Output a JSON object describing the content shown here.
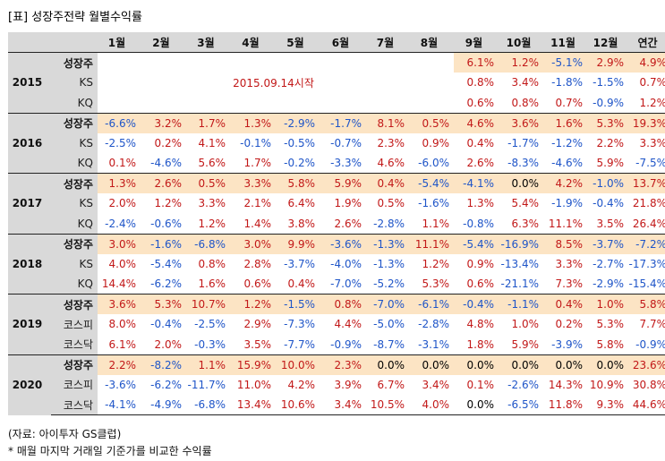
{
  "title": "[표] 성장주전략 월별수익률",
  "header": [
    "1월",
    "2월",
    "3월",
    "4월",
    "5월",
    "6월",
    "7월",
    "8월",
    "9월",
    "10월",
    "11월",
    "12월",
    "연간"
  ],
  "groups": [
    {
      "year": "2015",
      "note": "2015.09.14시작",
      "rows": [
        {
          "label": "성장주",
          "main": true,
          "values": [
            "",
            "",
            "",
            "",
            "",
            "",
            "",
            "",
            "6.1%",
            "1.2%",
            "-5.1%",
            "2.9%",
            "4.9%"
          ]
        },
        {
          "label": "KS",
          "main": false,
          "values": [
            "",
            "",
            "",
            "",
            "",
            "",
            "",
            "",
            "0.8%",
            "3.4%",
            "-1.8%",
            "-1.5%",
            "0.7%"
          ]
        },
        {
          "label": "KQ",
          "main": false,
          "values": [
            "",
            "",
            "",
            "",
            "",
            "",
            "",
            "",
            "0.6%",
            "0.8%",
            "0.7%",
            "-0.9%",
            "1.2%"
          ]
        }
      ]
    },
    {
      "year": "2016",
      "rows": [
        {
          "label": "성장주",
          "main": true,
          "values": [
            "-6.6%",
            "3.2%",
            "1.7%",
            "1.3%",
            "-2.9%",
            "-1.7%",
            "8.1%",
            "0.5%",
            "4.6%",
            "3.6%",
            "1.6%",
            "5.3%",
            "19.3%"
          ]
        },
        {
          "label": "KS",
          "main": false,
          "values": [
            "-2.5%",
            "0.2%",
            "4.1%",
            "-0.1%",
            "-0.5%",
            "-0.7%",
            "2.3%",
            "0.9%",
            "0.4%",
            "-1.7%",
            "-1.2%",
            "2.2%",
            "3.3%"
          ]
        },
        {
          "label": "KQ",
          "main": false,
          "values": [
            "0.1%",
            "-4.6%",
            "5.6%",
            "1.7%",
            "-0.2%",
            "-3.3%",
            "4.6%",
            "-6.0%",
            "2.6%",
            "-8.3%",
            "-4.6%",
            "5.9%",
            "-7.5%"
          ]
        }
      ]
    },
    {
      "year": "2017",
      "rows": [
        {
          "label": "성장주",
          "main": true,
          "values": [
            "1.3%",
            "2.6%",
            "0.5%",
            "3.3%",
            "5.8%",
            "5.9%",
            "0.4%",
            "-5.4%",
            "-4.1%",
            "0.0%",
            "4.2%",
            "-1.0%",
            "13.7%"
          ]
        },
        {
          "label": "KS",
          "main": false,
          "values": [
            "2.0%",
            "1.2%",
            "3.3%",
            "2.1%",
            "6.4%",
            "1.9%",
            "0.5%",
            "-1.6%",
            "1.3%",
            "5.4%",
            "-1.9%",
            "-0.4%",
            "21.8%"
          ]
        },
        {
          "label": "KQ",
          "main": false,
          "values": [
            "-2.4%",
            "-0.6%",
            "1.2%",
            "1.4%",
            "3.8%",
            "2.6%",
            "-2.8%",
            "1.1%",
            "-0.8%",
            "6.3%",
            "11.1%",
            "3.5%",
            "26.4%"
          ]
        }
      ]
    },
    {
      "year": "2018",
      "rows": [
        {
          "label": "성장주",
          "main": true,
          "values": [
            "3.0%",
            "-1.6%",
            "-6.8%",
            "3.0%",
            "9.9%",
            "-3.6%",
            "-1.3%",
            "11.1%",
            "-5.4%",
            "-16.9%",
            "8.5%",
            "-3.7%",
            "-7.2%"
          ]
        },
        {
          "label": "KS",
          "main": false,
          "values": [
            "4.0%",
            "-5.4%",
            "0.8%",
            "2.8%",
            "-3.7%",
            "-4.0%",
            "-1.3%",
            "1.2%",
            "0.9%",
            "-13.4%",
            "3.3%",
            "-2.7%",
            "-17.3%"
          ]
        },
        {
          "label": "KQ",
          "main": false,
          "values": [
            "14.4%",
            "-6.2%",
            "1.6%",
            "0.6%",
            "0.4%",
            "-7.0%",
            "-5.2%",
            "5.3%",
            "0.6%",
            "-21.1%",
            "7.3%",
            "-2.9%",
            "-15.4%"
          ]
        }
      ]
    },
    {
      "year": "2019",
      "rows": [
        {
          "label": "성장주",
          "main": true,
          "values": [
            "3.6%",
            "5.3%",
            "10.7%",
            "1.2%",
            "-1.5%",
            "0.8%",
            "-7.0%",
            "-6.1%",
            "-0.4%",
            "-1.1%",
            "0.4%",
            "1.0%",
            "5.8%"
          ]
        },
        {
          "label": "코스피",
          "main": false,
          "values": [
            "8.0%",
            "-0.4%",
            "-2.5%",
            "2.9%",
            "-7.3%",
            "4.4%",
            "-5.0%",
            "-2.8%",
            "4.8%",
            "1.0%",
            "0.2%",
            "5.3%",
            "7.7%"
          ]
        },
        {
          "label": "코스닥",
          "main": false,
          "values": [
            "6.1%",
            "2.0%",
            "-0.3%",
            "3.5%",
            "-7.7%",
            "-0.9%",
            "-8.7%",
            "-3.1%",
            "1.8%",
            "5.9%",
            "-3.9%",
            "5.8%",
            "-0.9%"
          ]
        }
      ]
    },
    {
      "year": "2020",
      "rows": [
        {
          "label": "성장주",
          "main": true,
          "values": [
            "2.2%",
            "-8.2%",
            "1.1%",
            "15.9%",
            "10.0%",
            "2.3%",
            "0.0%",
            "0.0%",
            "0.0%",
            "0.0%",
            "0.0%",
            "0.0%",
            "23.6%"
          ]
        },
        {
          "label": "코스피",
          "main": false,
          "values": [
            "-3.6%",
            "-6.2%",
            "-11.7%",
            "11.0%",
            "4.2%",
            "3.9%",
            "6.7%",
            "3.4%",
            "0.1%",
            "-2.6%",
            "14.3%",
            "10.9%",
            "30.8%"
          ]
        },
        {
          "label": "코스닥",
          "main": false,
          "values": [
            "-4.1%",
            "-4.9%",
            "-6.8%",
            "13.4%",
            "10.6%",
            "3.4%",
            "10.5%",
            "4.0%",
            "0.0%",
            "-6.5%",
            "11.8%",
            "9.3%",
            "44.6%"
          ]
        }
      ]
    }
  ],
  "source": "(자료: 아이투자 GS클럽)",
  "footnote": "* 매월 마지막 거래일 기준가를 비교한 수익률",
  "colors": {
    "positive": "#c21818",
    "negative": "#1f55c8",
    "highlight": "#fce4c4",
    "header_bg": "#d9d9d9"
  }
}
